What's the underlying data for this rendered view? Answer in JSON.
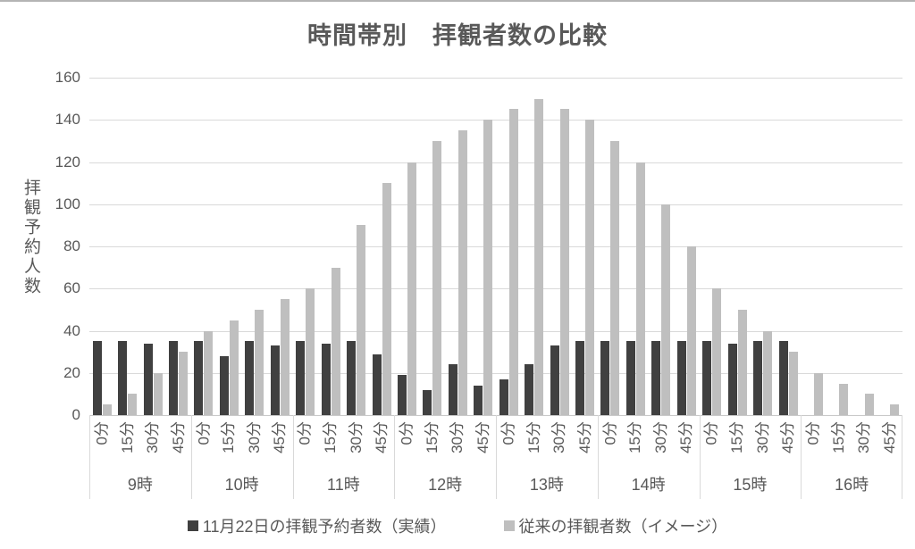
{
  "chart_data": {
    "type": "bar",
    "title": "時間帯別　拝観者数の比較",
    "ylabel": "拝観予約人数",
    "xlabel": "",
    "ylim": [
      0,
      160
    ],
    "yticks": [
      0,
      20,
      40,
      60,
      80,
      100,
      120,
      140,
      160
    ],
    "grid": true,
    "legend_position": "bottom",
    "categories_hours": [
      "9時",
      "10時",
      "11時",
      "12時",
      "13時",
      "14時",
      "15時",
      "16時"
    ],
    "categories_minutes": [
      "0分",
      "15分",
      "30分",
      "45分"
    ],
    "series": [
      {
        "name": "11月22日の拝観予約者数（実績）",
        "color": "#404040",
        "values": [
          [
            35,
            35,
            34,
            35
          ],
          [
            35,
            28,
            35,
            33
          ],
          [
            35,
            34,
            35,
            29
          ],
          [
            19,
            12,
            24,
            14
          ],
          [
            17,
            24,
            33,
            35
          ],
          [
            35,
            35,
            35,
            35
          ],
          [
            35,
            34,
            35,
            35
          ],
          [
            0,
            0,
            0,
            0
          ]
        ]
      },
      {
        "name": "従来の拝観者数（イメージ）",
        "color": "#bfbfbf",
        "values": [
          [
            5,
            10,
            20,
            30
          ],
          [
            40,
            45,
            50,
            55
          ],
          [
            60,
            70,
            90,
            110
          ],
          [
            120,
            130,
            135,
            140
          ],
          [
            145,
            150,
            145,
            140
          ],
          [
            130,
            120,
            100,
            80
          ],
          [
            60,
            50,
            40,
            30
          ],
          [
            20,
            15,
            10,
            5
          ]
        ]
      }
    ],
    "grid_color": "#d9d9d9",
    "axis_color": "#c9c9c9",
    "text_color": "#595959"
  }
}
